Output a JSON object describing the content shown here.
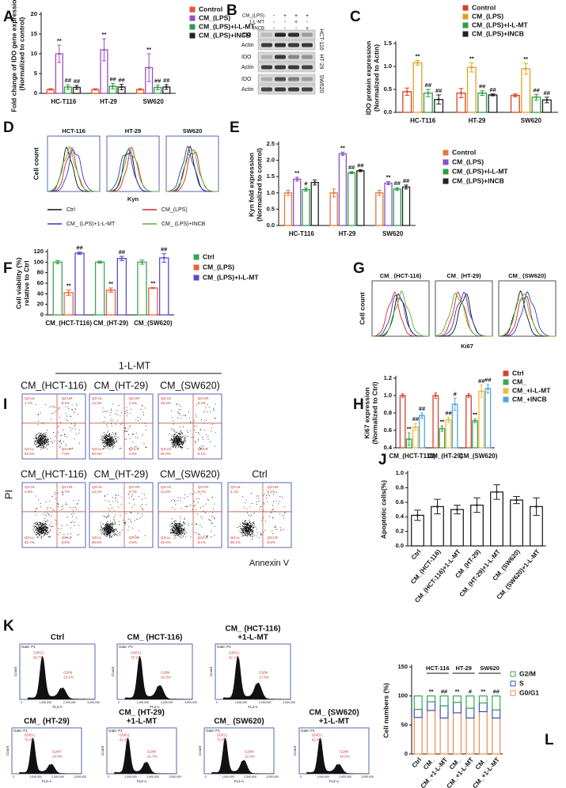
{
  "chart_data": [
    {
      "type": "bar",
      "panel": "A",
      "y_label": [
        "Fold change of IDO gene expression",
        "(Normalized to control)"
      ],
      "categories": [
        "HC-T116",
        "HT-29",
        "SW620"
      ],
      "ylim": [
        0,
        20
      ],
      "yticks": [
        0,
        5,
        10,
        15,
        20
      ],
      "series": [
        {
          "name": "Control",
          "color": "#e2572b",
          "values": [
            1,
            1,
            1
          ],
          "errors": [
            0.2,
            0.2,
            0.2
          ]
        },
        {
          "name": "CM_(LPS)",
          "color": "#9b4fc4",
          "values": [
            10,
            11,
            6.5
          ],
          "errors": [
            2.2,
            2.8,
            3.5
          ],
          "significance": [
            "**",
            "**",
            "**"
          ]
        },
        {
          "name": "CM_(LPS)+I-L-MT",
          "color": "#2e9e44",
          "values": [
            1.6,
            1.8,
            1.5
          ],
          "errors": [
            0.6,
            0.7,
            0.6
          ],
          "significance": [
            "##",
            "##",
            "##"
          ]
        },
        {
          "name": "CM_(LPS)+INCB",
          "color": "#222222",
          "values": [
            1.5,
            1.6,
            1.6
          ],
          "errors": [
            0.5,
            0.7,
            0.6
          ],
          "significance": [
            "##",
            "##",
            "##"
          ]
        }
      ]
    },
    {
      "type": "bar",
      "panel": "C",
      "y_label": [
        "IDO protein expression",
        "(Normalized to Actin)"
      ],
      "categories": [
        "HC-T116",
        "HT-29",
        "SW620"
      ],
      "ylim": [
        0,
        1.5
      ],
      "yticks": [
        {
          "value": 0,
          "label": "0.0"
        },
        0.5,
        {
          "value": 1,
          "label": "1.0"
        },
        1.5
      ],
      "series": [
        {
          "name": "Control",
          "color": "#d9412b",
          "values": [
            0.45,
            0.42,
            0.37
          ],
          "errors": [
            0.08,
            0.1,
            0.03
          ]
        },
        {
          "name": "CM_(LPS)",
          "color": "#e0a020",
          "values": [
            1.08,
            0.98,
            0.95
          ],
          "errors": [
            0.05,
            0.1,
            0.12
          ],
          "significance": [
            "**",
            "**",
            "**"
          ]
        },
        {
          "name": "CM_(LPS)+I-L-MT",
          "color": "#2e9e44",
          "values": [
            0.42,
            0.42,
            0.33
          ],
          "errors": [
            0.08,
            0.05,
            0.06
          ],
          "significance": [
            "##",
            "##",
            "##"
          ]
        },
        {
          "name": "CM_(LPS)+INCB",
          "color": "#222222",
          "values": [
            0.28,
            0.38,
            0.27
          ],
          "errors": [
            0.1,
            0.02,
            0.06
          ],
          "significance": [
            "##",
            "##",
            "##"
          ]
        }
      ]
    },
    {
      "type": "bar",
      "panel": "E",
      "y_label": [
        "Kyn fold expression",
        "(Normalized to control)"
      ],
      "categories": [
        "HC-T116",
        "HT-29",
        "SW620"
      ],
      "ylim": [
        0,
        2.5
      ],
      "yticks": [
        {
          "value": 0,
          "label": "0.0"
        },
        0.5,
        {
          "value": 1,
          "label": "1.0"
        },
        1.5,
        {
          "value": 2,
          "label": "2.0"
        },
        2.5
      ],
      "series": [
        {
          "name": "Control",
          "color": "#e07b39",
          "values": [
            1,
            1,
            1
          ],
          "errors": [
            0.08,
            0.12,
            0.08
          ]
        },
        {
          "name": "CM_(LPS)",
          "color": "#8a4fc8",
          "values": [
            1.42,
            2.2,
            1.3
          ],
          "errors": [
            0.06,
            0.05,
            0.05
          ],
          "significance": [
            "**",
            "**",
            "**"
          ]
        },
        {
          "name": "CM_(LPS)+I-L-MT",
          "color": "#2e9e44",
          "values": [
            1.1,
            1.62,
            1.12
          ],
          "errors": [
            0.05,
            0.03,
            0.04
          ],
          "significance": [
            "#",
            "##",
            "##"
          ]
        },
        {
          "name": "CM_(LPS)+INCB",
          "color": "#222222",
          "values": [
            1.32,
            1.68,
            1.18
          ],
          "errors": [
            0.08,
            0.03,
            0.06
          ],
          "significance": [
            null,
            "##",
            "##"
          ]
        }
      ]
    },
    {
      "type": "bar",
      "panel": "F",
      "y_label": [
        "Cell viability (%)",
        "relative to Ctrl"
      ],
      "categories": [
        "CM_(HCT-T116)",
        "CM_(HT-29)",
        "CM_(SW620)"
      ],
      "ylim": [
        0,
        120
      ],
      "yticks": [
        0,
        20,
        40,
        60,
        80,
        100,
        120
      ],
      "series": [
        {
          "name": "Ctrl",
          "color": "#3aa655",
          "values": [
            100,
            100,
            100
          ],
          "errors": [
            3,
            2,
            4
          ]
        },
        {
          "name": "CM_(LPS)",
          "color": "#e8643c",
          "values": [
            42,
            47,
            51
          ],
          "errors": [
            5,
            4,
            1
          ],
          "significance": [
            "**",
            "**",
            "**"
          ]
        },
        {
          "name": "CM_(LPS)+I-L-MT",
          "color": "#5b4fc8",
          "values": [
            117,
            107,
            108
          ],
          "errors": [
            2,
            4,
            8
          ],
          "significance": [
            "##",
            "##",
            "##"
          ]
        }
      ]
    },
    {
      "type": "bar",
      "panel": "H",
      "y_label": [
        "Ki67 expression",
        "(Normalized to Ctrl)"
      ],
      "categories": [
        "CM_(HCT-T116)",
        "CM_(HT-29)",
        "CM_(SW620)"
      ],
      "ylim": [
        0.4,
        1.2
      ],
      "yticks": [
        0.4,
        0.6,
        0.8,
        {
          "value": 1,
          "label": "1.0"
        },
        1.2
      ],
      "series": [
        {
          "name": "Ctrl",
          "color": "#d9412b",
          "values": [
            1,
            1,
            1
          ],
          "errors": [
            0.02,
            0.03,
            0.02
          ]
        },
        {
          "name": "CM_",
          "color": "#3aa655",
          "values": [
            0.5,
            0.62,
            0.71
          ],
          "errors": [
            0.07,
            0.03,
            0.02
          ],
          "significance": [
            "**",
            "**",
            "**"
          ]
        },
        {
          "name": "CM_+I-L-MT",
          "color": "#f0b93a",
          "values": [
            0.64,
            0.72,
            1.05
          ],
          "errors": [
            0.04,
            0.03,
            0.07
          ],
          "significance": [
            "##",
            "##",
            "##"
          ]
        },
        {
          "name": "CM_+INCB",
          "color": "#4aa8e0",
          "values": [
            0.77,
            0.9,
            1.08
          ],
          "errors": [
            0.03,
            0.07,
            0.05
          ],
          "significance": [
            "##",
            "#",
            "##"
          ]
        }
      ]
    },
    {
      "type": "bar",
      "panel": "J",
      "y_label": [
        "Apoptotic cells(%)"
      ],
      "categories": [
        "Ctrl",
        "CM_(HCT-116)",
        "CM_(HCT-116)+1-L-MT",
        "CM_(HT-29)",
        "CM_(HT-29)+1-L-MT",
        "CM_(SW620)",
        "CM_(SW620)+1-L-MT"
      ],
      "ylim": [
        0,
        1
      ],
      "yticks": [
        {
          "value": 0,
          "label": "0.0"
        },
        0.2,
        0.4,
        0.6,
        0.8,
        {
          "value": 1,
          "label": "1.0"
        }
      ],
      "color": "#222222",
      "values": [
        0.42,
        0.54,
        0.5,
        0.56,
        0.74,
        0.63,
        0.54
      ],
      "errors": [
        0.07,
        0.1,
        0.06,
        0.1,
        0.1,
        0.05,
        0.12
      ]
    },
    {
      "type": "stacked_bar",
      "panel": "L",
      "y_label": [
        "Cell numbers (%)"
      ],
      "categories": [
        "Ctrl",
        "CM_",
        "CM_+1-L-MT",
        "CM_",
        "CM_+1-L-MT",
        "CM_",
        "CM_+1-L-MT"
      ],
      "group_labels": [
        "HCT-116",
        "HT-29",
        "SW620"
      ],
      "ylim": [
        0,
        150
      ],
      "yticks": [
        0,
        50,
        100,
        150
      ],
      "significance": [
        null,
        "**",
        "##",
        "**",
        "#",
        "**",
        "##"
      ],
      "series": [
        {
          "name": "G0/G1",
          "color": "#f08a4b",
          "values": [
            63,
            75,
            62,
            71,
            62,
            73,
            62
          ]
        },
        {
          "name": "S",
          "color": "#3b4fb8",
          "values": [
            14,
            15,
            21,
            18,
            17,
            15,
            14
          ]
        },
        {
          "name": "G2/M",
          "color": "#3aa655",
          "values": [
            23,
            10,
            17,
            11,
            21,
            12,
            24
          ]
        }
      ]
    }
  ],
  "blot": {
    "panel": "B",
    "treatments": [
      {
        "name": "CM_(LPS)",
        "signs": [
          "-",
          "+",
          "+",
          "+"
        ]
      },
      {
        "name": "1-L-MT",
        "signs": [
          "-",
          "-",
          "+",
          "-"
        ]
      },
      {
        "name": "INCB",
        "signs": [
          "-",
          "-",
          "-",
          "+"
        ]
      }
    ],
    "rows": [
      {
        "cell_line": "HCT-116",
        "bands": [
          "IDO",
          "Actin"
        ]
      },
      {
        "cell_line": "HT-29",
        "bands": [
          "IDO",
          "Actin"
        ]
      },
      {
        "cell_line": "SW620",
        "bands": [
          "IDO",
          "Actin"
        ]
      }
    ]
  },
  "kyn_histograms": {
    "panel": "D",
    "titles": [
      "HCT-116",
      "HT-29",
      "SW620"
    ],
    "y_label": "Cell count",
    "x_label": "Kyn",
    "legend": [
      "Ctrl",
      "CM_(LPS)",
      "CM_ (LPS)+1-L-MT",
      "CM_ (LPS)+INCB"
    ]
  },
  "ki67_histograms": {
    "panel": "G",
    "titles": [
      "CM_ (HCT-116)",
      "CM_ (HT-29)",
      "CM_ (SW620)"
    ],
    "y_label": "Cell count",
    "x_label": "Ki67"
  },
  "apoptosis_flow": {
    "panel": "I",
    "group_label": "1-L-MT",
    "y_label": "PI",
    "x_label": "Annexin V",
    "plots": [
      {
        "title": "CM_(HCT-116)",
        "quadrants": [
          [
            "Q3-UL",
            "1.7%"
          ],
          [
            "Q3-UR",
            "8.2%"
          ],
          [
            "Q3-LL",
            "82.6%"
          ],
          [
            "Q3-LR",
            "7.5%"
          ]
        ]
      },
      {
        "title": "CM_(HT-29)",
        "quadrants": [
          [
            "Q3-UL",
            "12.3%"
          ],
          [
            "Q3-UR",
            "1.2%"
          ],
          [
            "Q3-LL",
            "83.6%"
          ],
          [
            "Q3-LR",
            "2.9%"
          ]
        ]
      },
      {
        "title": "CM_(SW620)",
        "quadrants": [
          [
            "Q3-UL",
            "25.6%"
          ],
          [
            "Q3-UR",
            "8.3%"
          ],
          [
            "Q3-LL",
            "60.0%"
          ],
          [
            "Q3-LR",
            "6.1%"
          ]
        ]
      },
      {
        "title": "CM_(HCT-116)",
        "quadrants": [
          [
            "Q3-UL",
            "2.6%"
          ],
          [
            "Q3-UR",
            "6.7%"
          ],
          [
            "Q3-LL",
            "82.7%"
          ],
          [
            "Q3-LR",
            "8.0%"
          ]
        ]
      },
      {
        "title": "CM_(HT-29)",
        "quadrants": [
          [
            "Q3-UL",
            "14.2%"
          ],
          [
            "Q3-UR",
            "0.7%"
          ],
          [
            "Q3-LL",
            "80.6%"
          ],
          [
            "Q3-LR",
            "4.5%"
          ]
        ]
      },
      {
        "title": "CM_(SW620)",
        "quadrants": [
          [
            "Q3-UL",
            "24.2%"
          ],
          [
            "Q3-UR",
            "5.7%"
          ],
          [
            "Q3-LL",
            "62.0%"
          ],
          [
            "Q3-LR",
            "8.1%"
          ]
        ]
      },
      {
        "title": "Ctrl",
        "quadrants": [
          [
            "Q3-UL",
            "2.1%"
          ],
          [
            "Q3-UR",
            "6.1%"
          ],
          [
            "Q3-LL",
            "85.2%"
          ],
          [
            "Q3-LR",
            "6.6%"
          ]
        ]
      }
    ]
  },
  "cell_cycle": {
    "panel": "K",
    "gate": "Gate: P1",
    "x_label": "FL2-A",
    "y_label": "Count",
    "x_tick_labels": [
      "0",
      "1,000,000",
      "2,000,000",
      "3,000,000"
    ],
    "plots": [
      {
        "title": [
          "Ctrl"
        ],
        "g0g1": [
          "G0/G1",
          "62.7%"
        ],
        "g2m": [
          "G2/M",
          "23.2%"
        ]
      },
      {
        "title": [
          "CM_ (HCT-116)"
        ],
        "g0g1": [
          "G0/G1",
          "75.1%"
        ],
        "g2m": [
          "G2/M",
          "10.3%"
        ]
      },
      {
        "title": [
          "CM_ (HCT-116)",
          "+1-L-MT"
        ],
        "g0g1": [
          "G0/G1",
          "61.1%"
        ],
        "g2m": [
          "G2/M",
          "17.8%"
        ]
      },
      {
        "title": [
          "CM_ (HT-29)"
        ],
        "g0g1": [
          "G0/G1",
          "70.6%"
        ],
        "g2m": [
          "G2/M",
          "10.9%"
        ]
      },
      {
        "title": [
          "CM_ (HT-29)",
          "+1-L-MT"
        ],
        "g0g1": [
          "G0/G1",
          "62.2%"
        ],
        "g2m": [
          "G2/M",
          "21.3%"
        ]
      },
      {
        "title": [
          "CM_ (SW620)"
        ],
        "g0g1": [
          "G0/G1",
          "72.6%"
        ],
        "g2m": [
          "G2/M",
          "12.5%"
        ]
      },
      {
        "title": [
          "CM_ (SW620)",
          "+1-L-MT"
        ],
        "g0g1": [
          "G0/G1",
          "62.4%"
        ],
        "g2m": [
          "G2/M",
          "24.6%"
        ]
      }
    ]
  }
}
